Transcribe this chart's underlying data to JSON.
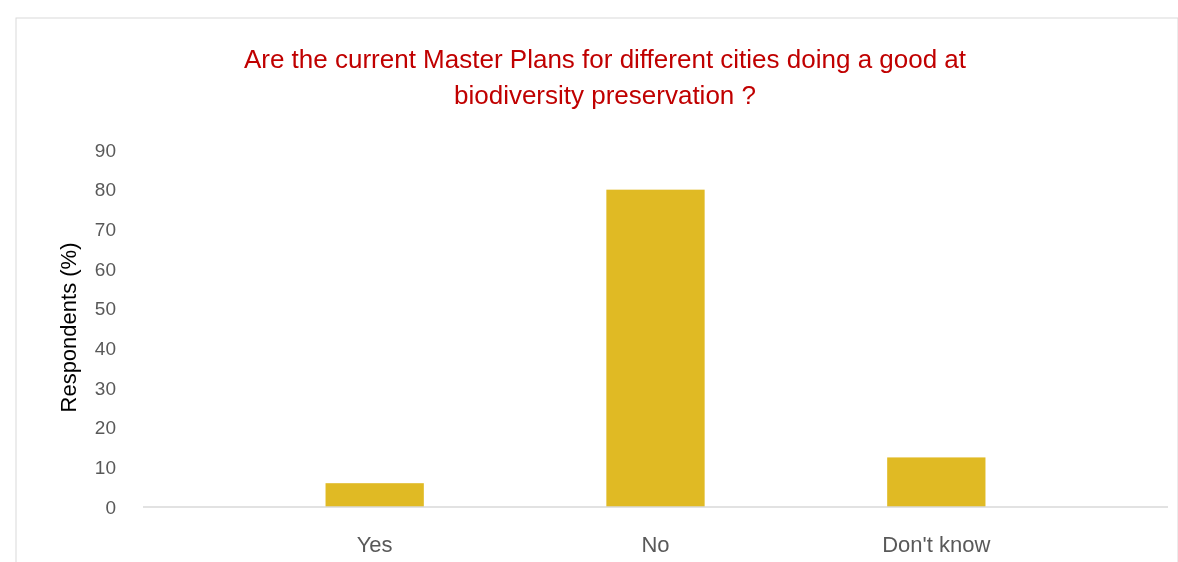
{
  "chart_data": {
    "type": "bar",
    "title": "Are the current Master Plans for different cities doing a good at biodiversity preservation ?",
    "ylabel": "Respondents (%)",
    "categories": [
      "Yes",
      "No",
      "Don't know"
    ],
    "values": [
      6,
      80,
      12.5
    ],
    "color": "#e0ba24",
    "ylim": [
      0,
      90
    ],
    "yticks": [
      0,
      10,
      20,
      30,
      40,
      50,
      60,
      70,
      80,
      90
    ],
    "grid": false
  }
}
